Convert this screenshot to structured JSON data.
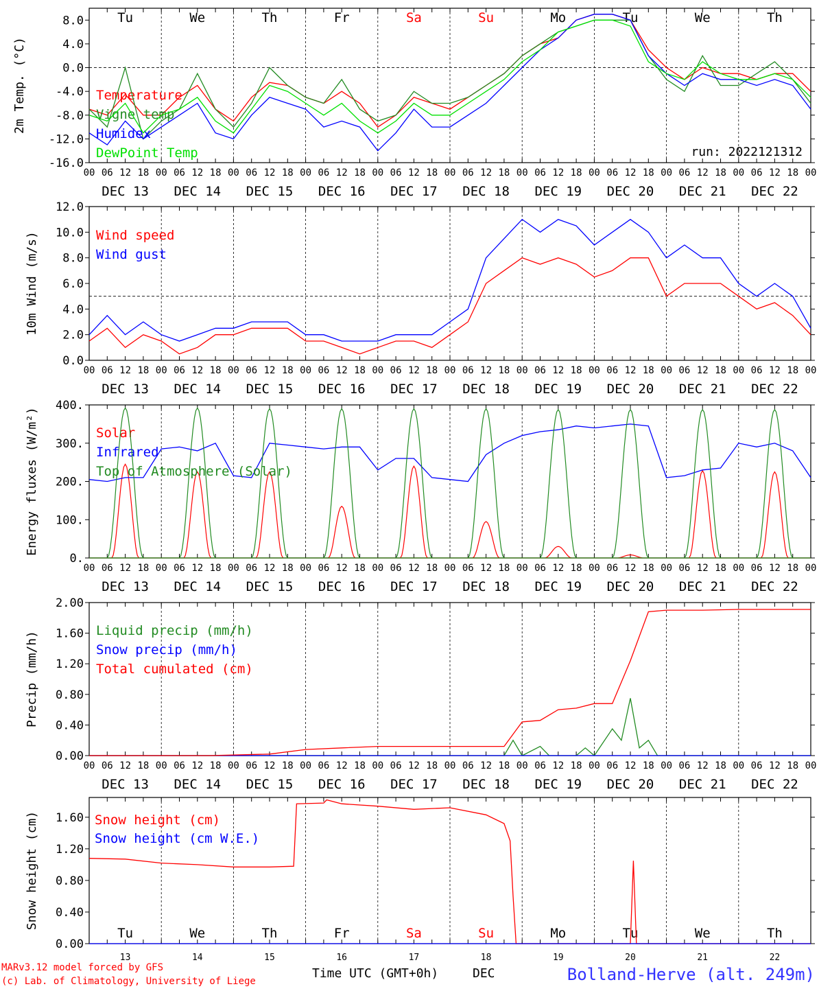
{
  "day_names": [
    "Tu",
    "We",
    "Th",
    "Fr",
    "Sa",
    "Su",
    "Mo",
    "Tu",
    "We",
    "Th"
  ],
  "weekend_days": [
    4,
    5
  ],
  "weekend_color": "#ff0000",
  "hour_ticks": [
    "00",
    "06",
    "12",
    "18"
  ],
  "hour_end_tick": "00",
  "date_labels": [
    "DEC 13",
    "DEC 14",
    "DEC 15",
    "DEC 16",
    "DEC 17",
    "DEC 18",
    "DEC 19",
    "DEC 20",
    "DEC 21",
    "DEC 22"
  ],
  "bottom_day_numbers": [
    "13",
    "14",
    "15",
    "16",
    "17",
    "18",
    "19",
    "20",
    "21",
    "22"
  ],
  "footer": {
    "credit_line1": "MARv3.12 model forced by GFS",
    "credit_line2": "(c) Lab. of Climatology, University of Liege",
    "xlabel": "Time UTC (GMT+0h)",
    "month": "DEC",
    "station": "Bolland-Herve (alt. 249m)"
  },
  "colors": {
    "red": "#ff0000",
    "green": "#228b22",
    "blue": "#0000ff",
    "lime": "#00e000",
    "station": "#3333ff"
  },
  "chart_data": [
    {
      "type": "line",
      "ylabel": "2m Temp. (°C)",
      "ylim": [
        -16,
        10
      ],
      "yticks": [
        "8.0",
        "4.0",
        "0.0",
        "-4.0",
        "-8.0",
        "-12.0",
        "-16.0"
      ],
      "ytick_values": [
        8,
        4,
        0,
        -4,
        -8,
        -12,
        -16
      ],
      "ref_line": 0,
      "run_label": "run: 2022121312",
      "x_unit": "hours since DEC 13 00 UTC",
      "series": [
        {
          "name": "Temperature",
          "color": "#ff0000",
          "x": [
            0,
            6,
            12,
            18,
            24,
            30,
            36,
            42,
            48,
            54,
            60,
            66,
            72,
            78,
            84,
            90,
            96,
            102,
            108,
            114,
            120,
            126,
            132,
            138,
            144,
            150,
            156,
            162,
            168,
            174,
            180,
            186,
            192,
            198,
            204,
            210,
            216,
            222,
            228,
            234,
            240
          ],
          "values": [
            -7,
            -8,
            -4.5,
            -8,
            -8,
            -5,
            -3,
            -7,
            -9,
            -5,
            -2.5,
            -3,
            -5,
            -6,
            -4,
            -6,
            -10,
            -8,
            -5,
            -6,
            -7,
            -5,
            -3,
            -1,
            2,
            4,
            5,
            8,
            9,
            9,
            8,
            3,
            0,
            -2,
            0,
            -1,
            -1,
            -2,
            -1,
            -1,
            -4
          ]
        },
        {
          "name": "Vigne temp",
          "color": "#228b22",
          "x": [
            0,
            6,
            12,
            18,
            24,
            30,
            36,
            42,
            48,
            54,
            60,
            66,
            72,
            78,
            84,
            90,
            96,
            102,
            108,
            114,
            120,
            126,
            132,
            138,
            144,
            150,
            156,
            162,
            168,
            174,
            180,
            186,
            192,
            198,
            204,
            210,
            216,
            222,
            228,
            234,
            240
          ],
          "values": [
            -7,
            -10,
            0,
            -12,
            -9,
            -7,
            -1,
            -7,
            -10,
            -6,
            0,
            -3,
            -5,
            -6,
            -2,
            -7,
            -9,
            -8,
            -4,
            -6,
            -6,
            -5,
            -3,
            -1,
            2,
            4,
            6,
            7,
            8,
            8,
            8,
            2,
            -2,
            -4,
            2,
            -3,
            -3,
            -1,
            1,
            -2,
            -6
          ]
        },
        {
          "name": "Humidex",
          "color": "#0000ff",
          "x": [
            0,
            6,
            12,
            18,
            24,
            30,
            36,
            42,
            48,
            54,
            60,
            66,
            72,
            78,
            84,
            90,
            96,
            102,
            108,
            114,
            120,
            126,
            132,
            138,
            144,
            150,
            156,
            162,
            168,
            174,
            180,
            186,
            192,
            198,
            204,
            210,
            216,
            222,
            228,
            234,
            240
          ],
          "values": [
            -11,
            -13,
            -9,
            -12,
            -10,
            -8,
            -6,
            -11,
            -12,
            -8,
            -5,
            -6,
            -7,
            -10,
            -9,
            -10,
            -14,
            -11,
            -7,
            -10,
            -10,
            -8,
            -6,
            -3,
            0,
            3,
            5,
            8,
            9,
            9,
            8,
            2,
            -1,
            -3,
            -1,
            -2,
            -2,
            -3,
            -2,
            -3,
            -7
          ]
        },
        {
          "name": "DewPoint Temp",
          "color": "#00e000",
          "x": [
            0,
            6,
            12,
            18,
            24,
            30,
            36,
            42,
            48,
            54,
            60,
            66,
            72,
            78,
            84,
            90,
            96,
            102,
            108,
            114,
            120,
            126,
            132,
            138,
            144,
            150,
            156,
            162,
            168,
            174,
            180,
            186,
            192,
            198,
            204,
            210,
            216,
            222,
            228,
            234,
            240
          ],
          "values": [
            -8,
            -9,
            -6,
            -11,
            -8,
            -7,
            -5,
            -9,
            -11,
            -7,
            -3,
            -4,
            -6,
            -8,
            -6,
            -9,
            -11,
            -9,
            -6,
            -8,
            -8,
            -6,
            -4,
            -2,
            1,
            3,
            6,
            7,
            8,
            8,
            7,
            1,
            -1,
            -2,
            1,
            -1,
            -2,
            -2,
            -1,
            -2,
            -5
          ]
        }
      ]
    },
    {
      "type": "line",
      "ylabel": "10m Wind (m/s)",
      "ylim": [
        0,
        12
      ],
      "yticks": [
        "12.0",
        "10.0",
        "8.0",
        "6.0",
        "4.0",
        "2.0",
        "0.0"
      ],
      "ytick_values": [
        12,
        10,
        8,
        6,
        4,
        2,
        0
      ],
      "ref_line": 5,
      "x_unit": "hours since DEC 13 00 UTC",
      "series": [
        {
          "name": "Wind speed",
          "color": "#ff0000",
          "x": [
            0,
            6,
            12,
            18,
            24,
            30,
            36,
            42,
            48,
            54,
            60,
            66,
            72,
            78,
            84,
            90,
            96,
            102,
            108,
            114,
            120,
            126,
            132,
            138,
            144,
            150,
            156,
            162,
            168,
            174,
            180,
            186,
            192,
            198,
            204,
            210,
            216,
            222,
            228,
            234,
            240
          ],
          "values": [
            1.5,
            2.5,
            1,
            2,
            1.5,
            0.5,
            1,
            2,
            2,
            2.5,
            2.5,
            2.5,
            1.5,
            1.5,
            1,
            0.5,
            1,
            1.5,
            1.5,
            1,
            2,
            3,
            6,
            7,
            8,
            7.5,
            8,
            7.5,
            6.5,
            7,
            8,
            8,
            5,
            6,
            6,
            6,
            5,
            4,
            4.5,
            3.5,
            2
          ]
        },
        {
          "name": "Wind gust",
          "color": "#0000ff",
          "x": [
            0,
            6,
            12,
            18,
            24,
            30,
            36,
            42,
            48,
            54,
            60,
            66,
            72,
            78,
            84,
            90,
            96,
            102,
            108,
            114,
            120,
            126,
            132,
            138,
            144,
            150,
            156,
            162,
            168,
            174,
            180,
            186,
            192,
            198,
            204,
            210,
            216,
            222,
            228,
            234,
            240
          ],
          "values": [
            2,
            3.5,
            2,
            3,
            2,
            1.5,
            2,
            2.5,
            2.5,
            3,
            3,
            3,
            2,
            2,
            1.5,
            1.5,
            1.5,
            2,
            2,
            2,
            3,
            4,
            8,
            9.5,
            11,
            10,
            11,
            10.5,
            9,
            10,
            11,
            10,
            8,
            9,
            8,
            8,
            6,
            5,
            6,
            5,
            2.5
          ]
        }
      ]
    },
    {
      "type": "line",
      "ylabel": "Energy fluxes (W/m²)",
      "ylim": [
        0,
        400
      ],
      "yticks": [
        "400.",
        "300.",
        "200.",
        "100.",
        "0."
      ],
      "ytick_values": [
        400,
        300,
        200,
        100,
        0
      ],
      "x_unit": "hours since DEC 13 00 UTC",
      "series": [
        {
          "name": "Solar",
          "color": "#ff0000",
          "x": [
            12,
            36,
            60,
            84,
            108,
            132,
            156,
            180,
            204,
            228
          ],
          "values": [
            245,
            225,
            225,
            135,
            240,
            95,
            30,
            8,
            228,
            225
          ]
        },
        {
          "name": "Infrared",
          "color": "#0000ff",
          "x": [
            0,
            6,
            12,
            18,
            24,
            30,
            36,
            42,
            48,
            54,
            60,
            66,
            72,
            78,
            84,
            90,
            96,
            102,
            108,
            114,
            120,
            126,
            132,
            138,
            144,
            150,
            156,
            162,
            168,
            174,
            180,
            186,
            192,
            198,
            204,
            210,
            216,
            222,
            228,
            234,
            240
          ],
          "values": [
            205,
            200,
            210,
            210,
            285,
            290,
            280,
            300,
            215,
            210,
            300,
            295,
            290,
            285,
            290,
            290,
            230,
            260,
            260,
            210,
            205,
            200,
            270,
            300,
            320,
            330,
            335,
            345,
            340,
            345,
            350,
            345,
            210,
            215,
            230,
            235,
            300,
            290,
            300,
            280,
            210
          ]
        },
        {
          "name": "Top of Atmosphere (Solar)",
          "color": "#228b22",
          "x": [
            12,
            36,
            60,
            84,
            108,
            132,
            156,
            180,
            204,
            228
          ],
          "values": [
            392,
            392,
            390,
            390,
            390,
            390,
            388,
            388,
            388,
            388
          ]
        }
      ]
    },
    {
      "type": "line",
      "ylabel": "Precip (mm/h)",
      "ylim": [
        0,
        2
      ],
      "yticks": [
        "2.00",
        "1.60",
        "1.20",
        "0.80",
        "0.40",
        "0.00"
      ],
      "ytick_values": [
        2.0,
        1.6,
        1.2,
        0.8,
        0.4,
        0.0
      ],
      "x_unit": "hours since DEC 13 00 UTC",
      "series": [
        {
          "name": "Liquid precip (mm/h)",
          "color": "#228b22",
          "x": [
            0,
            138,
            141,
            144,
            150,
            153,
            156,
            162,
            165,
            168,
            174,
            177,
            180,
            183,
            186,
            189,
            240
          ],
          "values": [
            0,
            0,
            0.2,
            0,
            0.12,
            0,
            0,
            0,
            0.1,
            0,
            0.35,
            0.2,
            0.75,
            0.1,
            0.2,
            0,
            0
          ]
        },
        {
          "name": "Snow precip (mm/h)",
          "color": "#0000ff",
          "x": [
            0,
            240
          ],
          "values": [
            0,
            0
          ]
        },
        {
          "name": "Total cumulated (cm)",
          "color": "#ff0000",
          "x": [
            0,
            40,
            60,
            72,
            84,
            96,
            108,
            120,
            138,
            144,
            150,
            156,
            162,
            168,
            174,
            180,
            186,
            192,
            204,
            216,
            228,
            240
          ],
          "values": [
            0,
            0,
            0.02,
            0.08,
            0.1,
            0.12,
            0.12,
            0.12,
            0.12,
            0.44,
            0.46,
            0.6,
            0.62,
            0.68,
            0.68,
            1.24,
            1.88,
            1.9,
            1.9,
            1.91,
            1.91,
            1.91
          ]
        }
      ]
    },
    {
      "type": "line",
      "ylabel": "Snow height (cm)",
      "ylim": [
        0,
        1.85
      ],
      "yticks": [
        "1.60",
        "1.20",
        "0.80",
        "0.40",
        "0.00"
      ],
      "ytick_values": [
        1.6,
        1.2,
        0.8,
        0.4,
        0.0
      ],
      "x_unit": "hours since DEC 13 00 UTC",
      "series": [
        {
          "name": "Snow height (cm)",
          "color": "#ff0000",
          "x": [
            0,
            12,
            24,
            36,
            48,
            60,
            68,
            69,
            78,
            79,
            84,
            96,
            108,
            120,
            132,
            138,
            140,
            141,
            142,
            180,
            181,
            182,
            183,
            240
          ],
          "values": [
            1.08,
            1.07,
            1.02,
            1.0,
            0.97,
            0.97,
            0.98,
            1.77,
            1.78,
            1.82,
            1.77,
            1.74,
            1.7,
            1.72,
            1.63,
            1.52,
            1.3,
            0.6,
            0,
            0,
            1.05,
            0,
            0,
            0
          ]
        },
        {
          "name": "Snow height (cm W.E.)",
          "color": "#0000ff",
          "x": [
            0,
            240
          ],
          "values": [
            0,
            0
          ]
        }
      ]
    }
  ]
}
